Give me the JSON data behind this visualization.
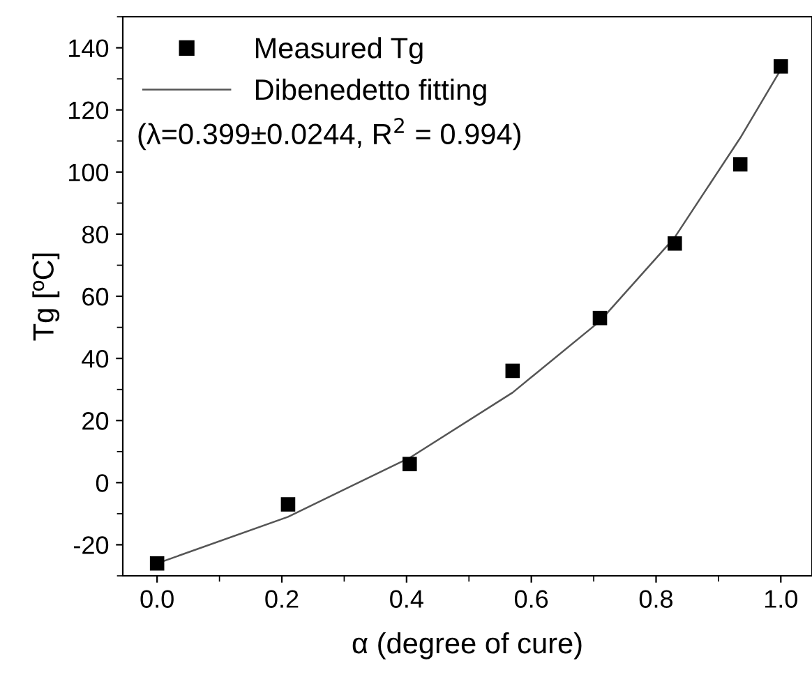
{
  "chart_data": {
    "type": "scatter",
    "xlabel": "α (degree of cure)",
    "ylabel": "Tg [ºC]",
    "series": [
      {
        "name": "Measured Tg",
        "color": "#000000",
        "marker": "square",
        "x": [
          0.0,
          0.21,
          0.405,
          0.57,
          0.71,
          0.83,
          0.935,
          1.0
        ],
        "values": [
          -26,
          -7,
          6,
          36,
          53,
          77,
          102.5,
          134
        ]
      },
      {
        "name": "Dibenedetto fitting",
        "type": "line",
        "color": "#555555",
        "marker": "none",
        "line_style": "solid",
        "x": [
          0.0,
          0.21,
          0.405,
          0.57,
          0.71,
          0.83,
          0.935,
          1.0
        ],
        "values": [
          -26,
          -11,
          8,
          29,
          52,
          79,
          111,
          133
        ]
      }
    ],
    "annotations": [
      "(λ=0.399±0.0244, R$^{2}$ = 0.994)"
    ],
    "xlim": [
      -0.055,
      1.05
    ],
    "ylim": [
      -30,
      150
    ],
    "xticks": [
      {
        "value": 0,
        "label": "0.0"
      },
      0.2,
      0.4,
      0.6,
      0.8,
      {
        "value": 1,
        "label": "1.0"
      }
    ],
    "yticks": [
      -20,
      0,
      20,
      40,
      60,
      80,
      100,
      120,
      140
    ],
    "grid": false,
    "legend": "top left"
  }
}
